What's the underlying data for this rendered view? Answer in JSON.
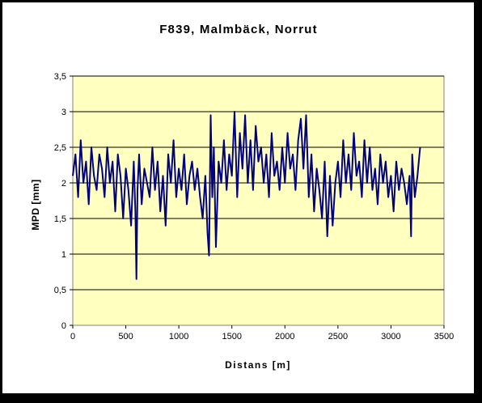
{
  "chart_data": {
    "type": "line",
    "title": "F839, Malmbäck, Norrut",
    "xlabel": "Distans [m]",
    "ylabel": "MPD [mm]",
    "xlim": [
      0,
      3500
    ],
    "ylim": [
      0,
      3.5
    ],
    "x_ticks": [
      "0",
      "500",
      "1000",
      "1500",
      "2000",
      "2500",
      "3000",
      "3500"
    ],
    "y_ticks": [
      "0",
      "0,5",
      "1",
      "1,5",
      "2",
      "2,5",
      "3",
      "3,5"
    ],
    "grid": "horizontal",
    "plot_background": "#FFFFC0",
    "line_color": "#000080",
    "series": [
      {
        "x": [
          0,
          25,
          50,
          75,
          100,
          125,
          150,
          175,
          200,
          225,
          250,
          275,
          300,
          325,
          350,
          375,
          400,
          425,
          450,
          475,
          500,
          525,
          550,
          575,
          590,
          600,
          610,
          625,
          650,
          675,
          700,
          725,
          750,
          775,
          800,
          825,
          850,
          875,
          900,
          925,
          950,
          975,
          1000,
          1025,
          1050,
          1075,
          1100,
          1125,
          1150,
          1175,
          1200,
          1225,
          1250,
          1270,
          1285,
          1300,
          1315,
          1330,
          1350,
          1375,
          1400,
          1425,
          1450,
          1475,
          1500,
          1525,
          1550,
          1575,
          1600,
          1625,
          1650,
          1675,
          1700,
          1725,
          1750,
          1775,
          1800,
          1825,
          1850,
          1875,
          1900,
          1925,
          1950,
          1975,
          2000,
          2025,
          2050,
          2075,
          2100,
          2125,
          2150,
          2175,
          2200,
          2225,
          2250,
          2275,
          2300,
          2325,
          2350,
          2375,
          2400,
          2425,
          2450,
          2475,
          2500,
          2525,
          2550,
          2575,
          2600,
          2625,
          2650,
          2675,
          2700,
          2725,
          2750,
          2775,
          2800,
          2825,
          2850,
          2875,
          2900,
          2925,
          2950,
          2975,
          3000,
          3025,
          3050,
          3075,
          3100,
          3125,
          3150,
          3175,
          3190,
          3200,
          3225,
          3250,
          3275
        ],
        "y": [
          2.1,
          2.4,
          1.8,
          2.6,
          2.0,
          2.3,
          1.7,
          2.5,
          2.1,
          1.9,
          2.4,
          2.2,
          1.8,
          2.5,
          2.0,
          2.3,
          1.6,
          2.4,
          2.1,
          1.5,
          2.2,
          1.9,
          1.4,
          2.3,
          1.6,
          0.65,
          1.9,
          2.4,
          1.7,
          2.2,
          2.0,
          1.8,
          2.5,
          1.9,
          2.3,
          1.6,
          2.1,
          1.4,
          2.4,
          2.0,
          2.6,
          1.8,
          2.2,
          1.9,
          2.4,
          1.7,
          2.1,
          2.3,
          1.9,
          2.2,
          1.8,
          1.5,
          2.1,
          1.3,
          0.98,
          2.95,
          1.8,
          2.5,
          1.1,
          2.3,
          2.0,
          2.6,
          1.9,
          2.4,
          2.1,
          3.0,
          1.8,
          2.7,
          2.2,
          2.95,
          2.0,
          2.6,
          1.9,
          2.8,
          2.3,
          2.5,
          2.0,
          2.4,
          1.8,
          2.7,
          2.1,
          2.3,
          1.9,
          2.5,
          2.0,
          2.7,
          2.2,
          2.4,
          1.9,
          2.6,
          2.9,
          2.2,
          2.95,
          1.8,
          2.4,
          1.6,
          2.2,
          1.9,
          1.5,
          2.3,
          1.25,
          2.1,
          1.4,
          2.0,
          2.3,
          1.8,
          2.6,
          2.0,
          2.4,
          1.9,
          2.7,
          2.1,
          2.3,
          1.8,
          2.6,
          2.0,
          2.5,
          1.9,
          2.2,
          1.7,
          2.4,
          2.0,
          2.3,
          1.8,
          2.1,
          1.6,
          2.3,
          1.9,
          2.2,
          2.0,
          1.7,
          2.1,
          1.25,
          2.4,
          1.8,
          2.1,
          2.5
        ]
      }
    ]
  }
}
